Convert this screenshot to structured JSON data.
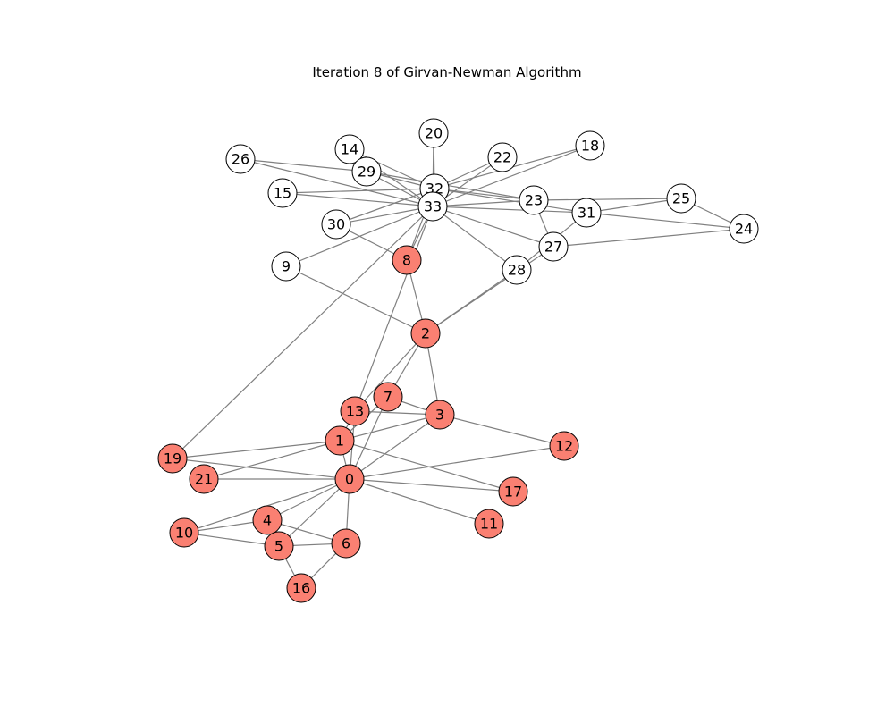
{
  "title": "Iteration 8 of Girvan-Newman Algorithm",
  "colors": {
    "community_a": "#fa8072",
    "community_b": "#ffffff",
    "edge": "#808080",
    "node_border": "#000000"
  },
  "chart_data": {
    "type": "network",
    "title": "Iteration 8 of Girvan-Newman Algorithm",
    "nodes": [
      {
        "id": "0",
        "community": "a"
      },
      {
        "id": "1",
        "community": "a"
      },
      {
        "id": "2",
        "community": "a"
      },
      {
        "id": "3",
        "community": "a"
      },
      {
        "id": "4",
        "community": "a"
      },
      {
        "id": "5",
        "community": "a"
      },
      {
        "id": "6",
        "community": "a"
      },
      {
        "id": "7",
        "community": "a"
      },
      {
        "id": "8",
        "community": "a"
      },
      {
        "id": "9",
        "community": "b"
      },
      {
        "id": "10",
        "community": "a"
      },
      {
        "id": "11",
        "community": "a"
      },
      {
        "id": "12",
        "community": "a"
      },
      {
        "id": "13",
        "community": "a"
      },
      {
        "id": "14",
        "community": "b"
      },
      {
        "id": "15",
        "community": "b"
      },
      {
        "id": "16",
        "community": "a"
      },
      {
        "id": "17",
        "community": "a"
      },
      {
        "id": "18",
        "community": "b"
      },
      {
        "id": "19",
        "community": "a"
      },
      {
        "id": "20",
        "community": "b"
      },
      {
        "id": "21",
        "community": "a"
      },
      {
        "id": "22",
        "community": "b"
      },
      {
        "id": "23",
        "community": "b"
      },
      {
        "id": "24",
        "community": "b"
      },
      {
        "id": "25",
        "community": "b"
      },
      {
        "id": "26",
        "community": "b"
      },
      {
        "id": "27",
        "community": "b"
      },
      {
        "id": "28",
        "community": "b"
      },
      {
        "id": "29",
        "community": "b"
      },
      {
        "id": "30",
        "community": "b"
      },
      {
        "id": "31",
        "community": "b"
      },
      {
        "id": "32",
        "community": "b"
      },
      {
        "id": "33",
        "community": "b"
      }
    ],
    "edges": [
      [
        "0",
        "1"
      ],
      [
        "0",
        "3"
      ],
      [
        "0",
        "4"
      ],
      [
        "0",
        "5"
      ],
      [
        "0",
        "6"
      ],
      [
        "0",
        "7"
      ],
      [
        "0",
        "10"
      ],
      [
        "0",
        "11"
      ],
      [
        "0",
        "12"
      ],
      [
        "0",
        "13"
      ],
      [
        "0",
        "17"
      ],
      [
        "0",
        "19"
      ],
      [
        "0",
        "21"
      ],
      [
        "1",
        "3"
      ],
      [
        "1",
        "7"
      ],
      [
        "1",
        "13"
      ],
      [
        "1",
        "17"
      ],
      [
        "1",
        "19"
      ],
      [
        "1",
        "21"
      ],
      [
        "2",
        "3"
      ],
      [
        "2",
        "7"
      ],
      [
        "2",
        "8"
      ],
      [
        "2",
        "9"
      ],
      [
        "2",
        "13"
      ],
      [
        "2",
        "27"
      ],
      [
        "2",
        "28"
      ],
      [
        "3",
        "7"
      ],
      [
        "3",
        "12"
      ],
      [
        "3",
        "13"
      ],
      [
        "4",
        "6"
      ],
      [
        "4",
        "10"
      ],
      [
        "5",
        "6"
      ],
      [
        "5",
        "10"
      ],
      [
        "5",
        "16"
      ],
      [
        "6",
        "16"
      ],
      [
        "8",
        "30"
      ],
      [
        "8",
        "32"
      ],
      [
        "8",
        "33"
      ],
      [
        "9",
        "33"
      ],
      [
        "13",
        "33"
      ],
      [
        "14",
        "32"
      ],
      [
        "14",
        "33"
      ],
      [
        "15",
        "32"
      ],
      [
        "15",
        "33"
      ],
      [
        "18",
        "32"
      ],
      [
        "18",
        "33"
      ],
      [
        "19",
        "33"
      ],
      [
        "20",
        "32"
      ],
      [
        "20",
        "33"
      ],
      [
        "22",
        "32"
      ],
      [
        "22",
        "33"
      ],
      [
        "23",
        "25"
      ],
      [
        "23",
        "27"
      ],
      [
        "23",
        "29"
      ],
      [
        "23",
        "32"
      ],
      [
        "23",
        "33"
      ],
      [
        "24",
        "25"
      ],
      [
        "24",
        "27"
      ],
      [
        "24",
        "31"
      ],
      [
        "25",
        "31"
      ],
      [
        "26",
        "29"
      ],
      [
        "26",
        "33"
      ],
      [
        "27",
        "33"
      ],
      [
        "28",
        "31"
      ],
      [
        "28",
        "33"
      ],
      [
        "29",
        "32"
      ],
      [
        "29",
        "33"
      ],
      [
        "30",
        "32"
      ],
      [
        "30",
        "33"
      ],
      [
        "31",
        "32"
      ],
      [
        "31",
        "33"
      ],
      [
        "32",
        "33"
      ]
    ]
  }
}
